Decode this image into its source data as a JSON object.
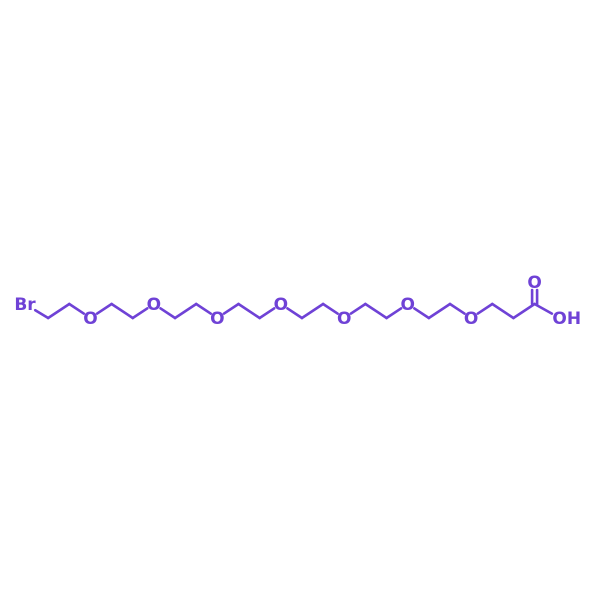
{
  "molecule": {
    "color": "#6f42d6",
    "chain": [
      "Br",
      "C",
      "C",
      "O",
      "C",
      "C",
      "O",
      "C",
      "C",
      "O",
      "C",
      "C",
      "O",
      "C",
      "C",
      "O",
      "C",
      "C",
      "O",
      "C",
      "C",
      "O",
      "C",
      "C",
      "C",
      "OH"
    ],
    "carbonyl_oxygen": "O",
    "carbonyl_on_atom_index": 24
  }
}
